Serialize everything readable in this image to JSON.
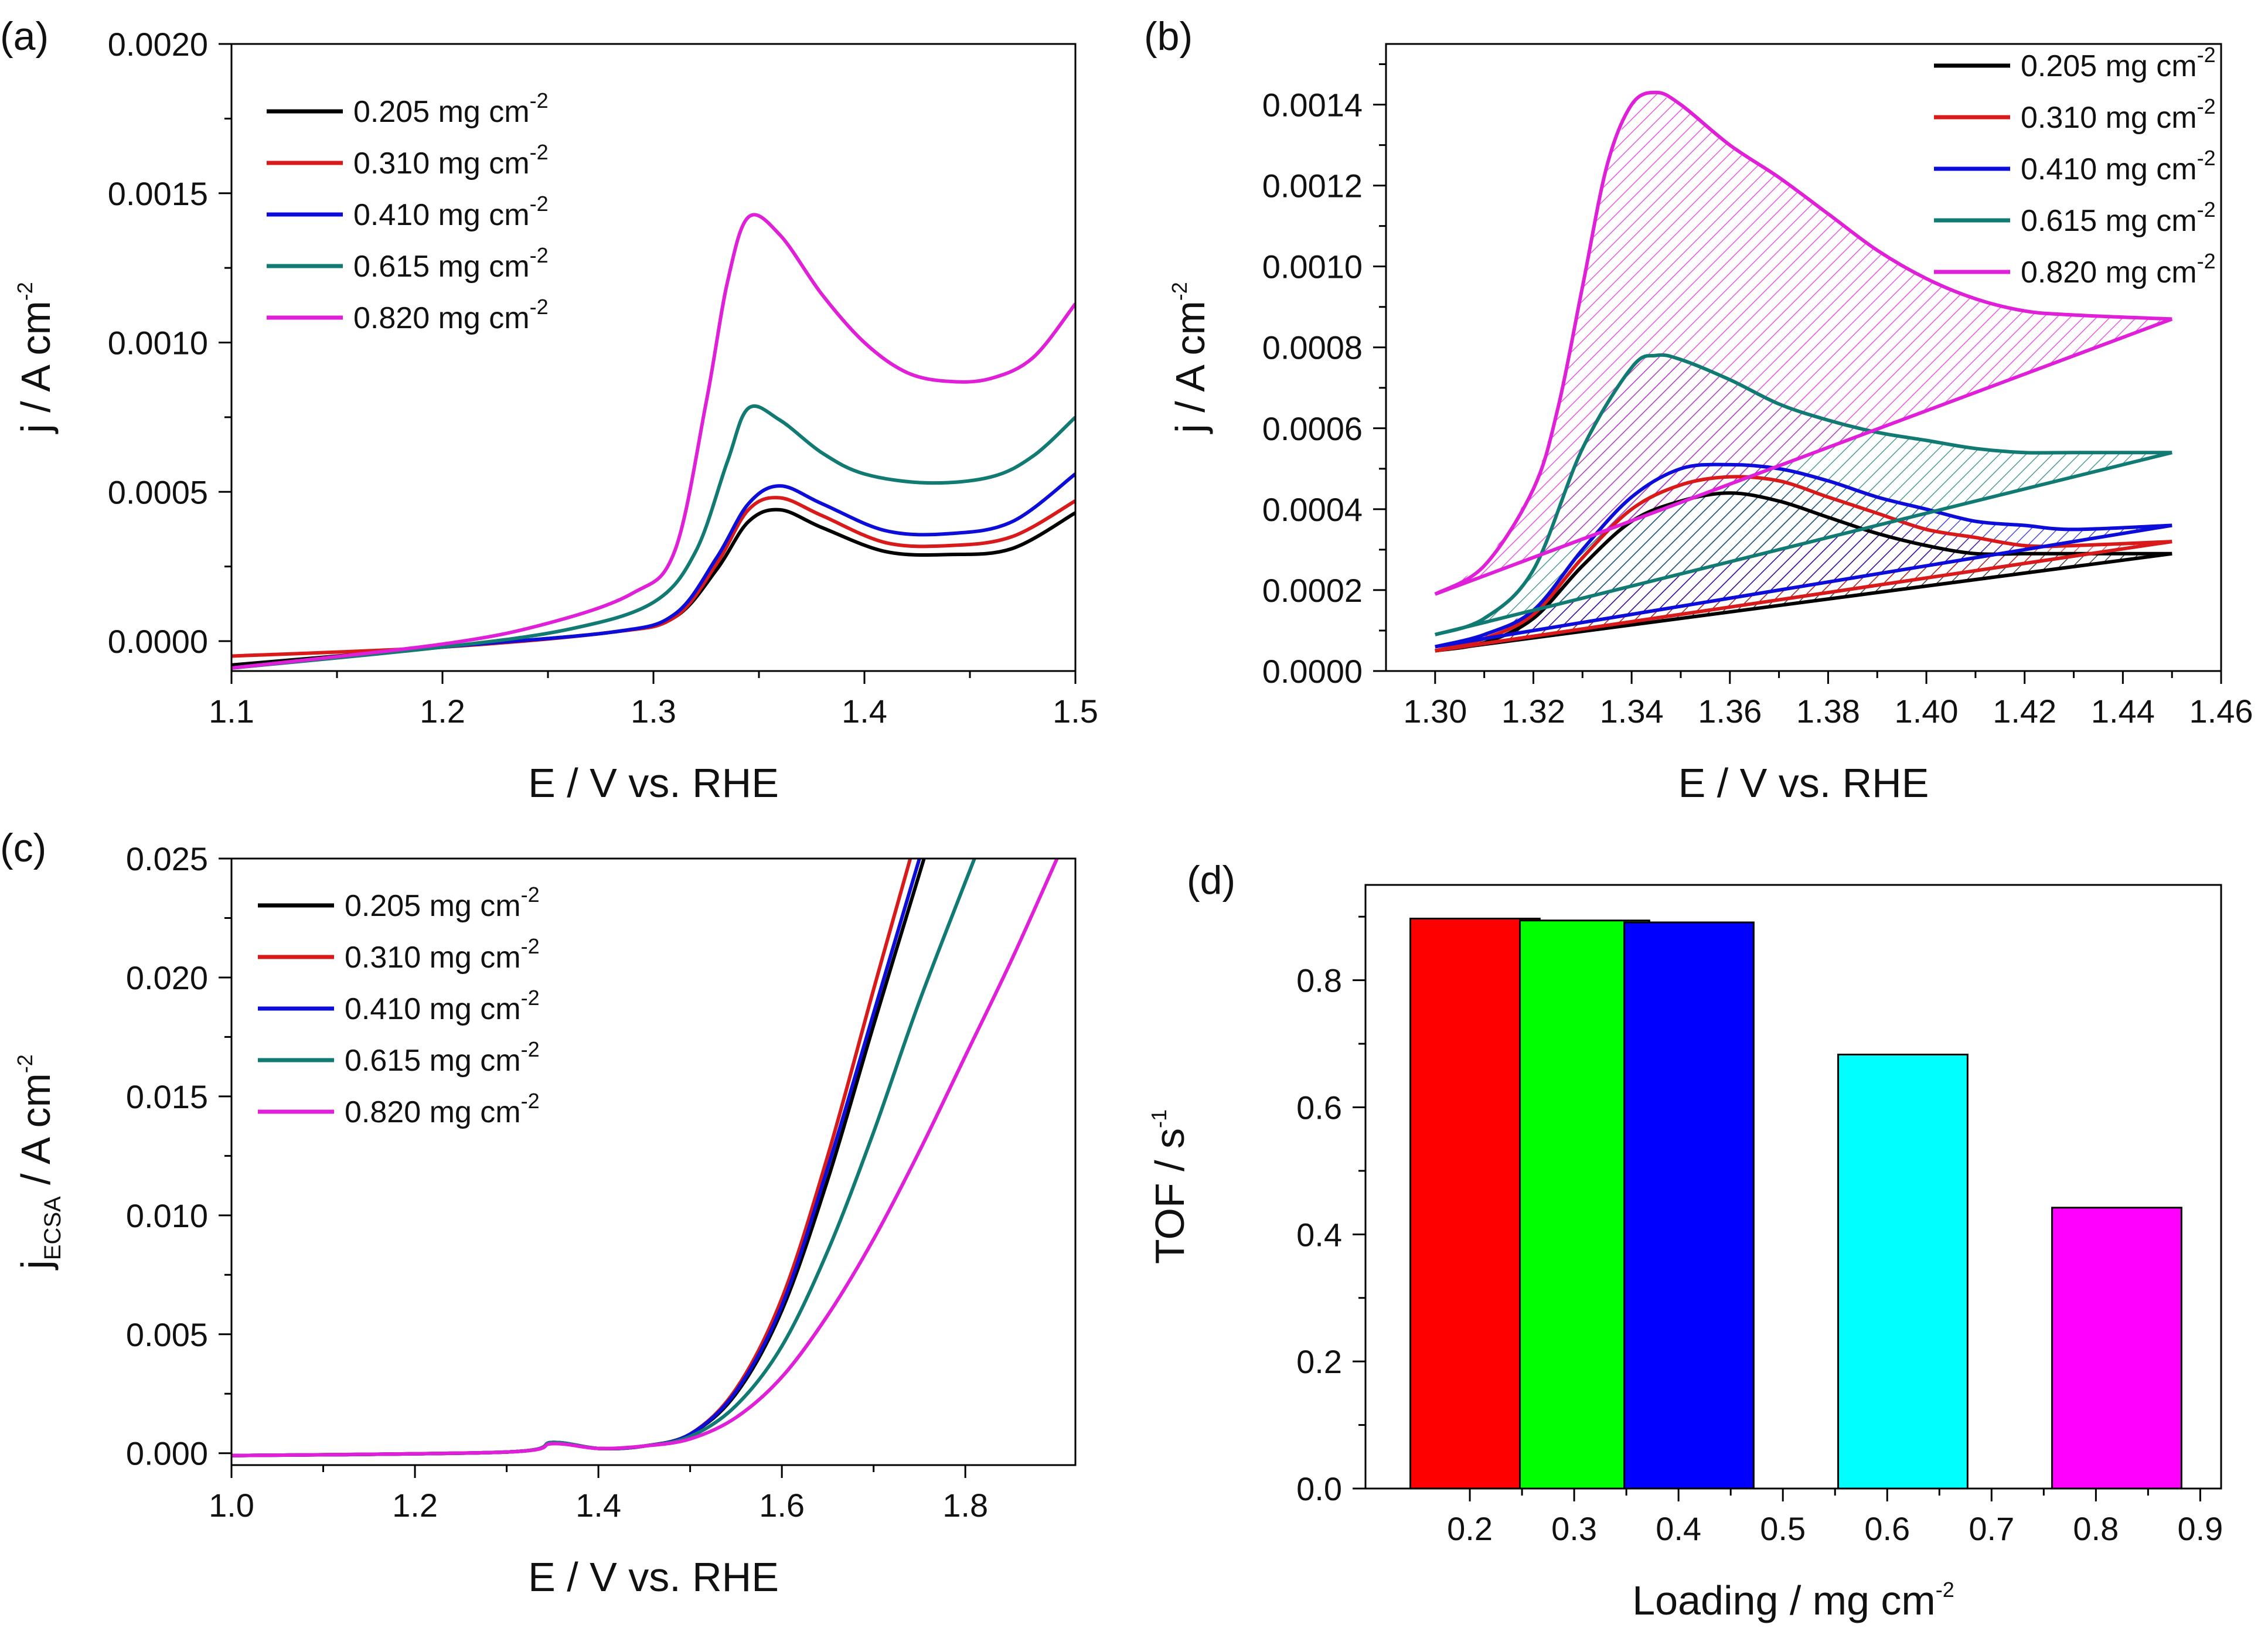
{
  "colors": {
    "black": "#000000",
    "red": "#d91a1a",
    "blue": "#0d0dd9",
    "teal": "#117a72",
    "magenta": "#e020d8",
    "bar_red": "#ff0000",
    "bar_green": "#00ff00",
    "bar_blue": "#0000ff",
    "bar_cyan": "#00ffff",
    "bar_magenta": "#ff00ff"
  },
  "legend": {
    "unit_text": "mg cm",
    "unit_exp": "-2",
    "entries": [
      {
        "value": "0.205",
        "color": "#000000"
      },
      {
        "value": "0.310",
        "color": "#d91a1a"
      },
      {
        "value": "0.410",
        "color": "#0d0dd9"
      },
      {
        "value": "0.615",
        "color": "#117a72"
      },
      {
        "value": "0.820",
        "color": "#e020d8"
      }
    ]
  },
  "chart_data": [
    {
      "panel": "(a)",
      "type": "line",
      "xlabel": "E / V vs. RHE",
      "ylabel": {
        "main": "j / A cm",
        "sup": "-2"
      },
      "xlim": [
        1.1,
        1.5
      ],
      "ylim": [
        -0.0001,
        0.002
      ],
      "xticks": [
        "1.1",
        "1.2",
        "1.3",
        "1.4",
        "1.5"
      ],
      "yticks": [
        "0.0000",
        "0.0005",
        "0.0010",
        "0.0015",
        "0.0020"
      ],
      "legend_position": "top-left",
      "series": [
        {
          "name": "0.205 mg cm-2",
          "color": "#000000",
          "x": [
            1.1,
            1.2,
            1.28,
            1.31,
            1.33,
            1.345,
            1.36,
            1.38,
            1.41,
            1.44,
            1.47,
            1.5
          ],
          "y": [
            -8e-05,
            -2e-05,
            3e-05,
            8e-05,
            0.00024,
            0.0004,
            0.00044,
            0.00038,
            0.0003,
            0.00029,
            0.00031,
            0.00043
          ]
        },
        {
          "name": "0.310 mg cm-2",
          "color": "#d91a1a",
          "x": [
            1.1,
            1.2,
            1.28,
            1.31,
            1.33,
            1.345,
            1.36,
            1.38,
            1.41,
            1.44,
            1.47,
            1.5
          ],
          "y": [
            -5e-05,
            -2e-05,
            3e-05,
            8e-05,
            0.00026,
            0.00044,
            0.00048,
            0.00042,
            0.00033,
            0.00032,
            0.00035,
            0.00047
          ]
        },
        {
          "name": "0.410 mg cm-2",
          "color": "#0d0dd9",
          "x": [
            1.1,
            1.2,
            1.28,
            1.31,
            1.33,
            1.345,
            1.36,
            1.38,
            1.41,
            1.44,
            1.47,
            1.5
          ],
          "y": [
            -9e-05,
            -2e-05,
            3e-05,
            9e-05,
            0.00028,
            0.00046,
            0.00052,
            0.00046,
            0.00037,
            0.00036,
            0.0004,
            0.00056
          ]
        },
        {
          "name": "0.615 mg cm-2",
          "color": "#117a72",
          "x": [
            1.1,
            1.2,
            1.26,
            1.3,
            1.32,
            1.335,
            1.345,
            1.36,
            1.38,
            1.4,
            1.43,
            1.46,
            1.48,
            1.5
          ],
          "y": [
            -9e-05,
            -2e-05,
            4e-05,
            0.00013,
            0.0003,
            0.0006,
            0.00078,
            0.00074,
            0.00063,
            0.00056,
            0.00053,
            0.00055,
            0.00062,
            0.00075
          ]
        },
        {
          "name": "0.820 mg cm-2",
          "color": "#e020d8",
          "x": [
            1.1,
            1.2,
            1.25,
            1.29,
            1.31,
            1.325,
            1.335,
            1.345,
            1.36,
            1.38,
            1.4,
            1.42,
            1.44,
            1.46,
            1.48,
            1.5
          ],
          "y": [
            -9e-05,
            -1e-05,
            6e-05,
            0.00016,
            0.0003,
            0.0008,
            0.0012,
            0.00142,
            0.00136,
            0.00116,
            0.001,
            0.0009,
            0.00087,
            0.00088,
            0.00095,
            0.00113
          ]
        }
      ]
    },
    {
      "panel": "(b)",
      "type": "line",
      "xlabel": "E / V vs. RHE",
      "ylabel": {
        "main": "j / A cm",
        "sup": "-2"
      },
      "xlim": [
        1.29,
        1.46
      ],
      "ylim": [
        0,
        0.00155
      ],
      "xticks": [
        "1.30",
        "1.32",
        "1.34",
        "1.36",
        "1.38",
        "1.40",
        "1.42",
        "1.44",
        "1.46"
      ],
      "yticks": [
        "0.0000",
        "0.0002",
        "0.0004",
        "0.0006",
        "0.0008",
        "0.0010",
        "0.0012",
        "0.0014"
      ],
      "legend_position": "top-right",
      "hatched_areas": true,
      "series": [
        {
          "name": "0.205 mg cm-2",
          "color": "#000000",
          "x": [
            1.3,
            1.31,
            1.32,
            1.33,
            1.34,
            1.35,
            1.36,
            1.37,
            1.38,
            1.39,
            1.4,
            1.41,
            1.42,
            1.43,
            1.45
          ],
          "y": [
            5e-05,
            7e-05,
            0.00013,
            0.00026,
            0.00037,
            0.00042,
            0.00044,
            0.00042,
            0.00038,
            0.00034,
            0.00031,
            0.00029,
            0.00029,
            0.00029,
            0.00029
          ],
          "baseline": [
            5e-05,
            0.00029
          ]
        },
        {
          "name": "0.310 mg cm-2",
          "color": "#d91a1a",
          "x": [
            1.3,
            1.31,
            1.32,
            1.33,
            1.34,
            1.35,
            1.36,
            1.37,
            1.38,
            1.39,
            1.4,
            1.41,
            1.42,
            1.43,
            1.45
          ],
          "y": [
            5e-05,
            8e-05,
            0.00014,
            0.00028,
            0.0004,
            0.00046,
            0.00048,
            0.00047,
            0.00043,
            0.00039,
            0.00035,
            0.00033,
            0.00031,
            0.00031,
            0.00032
          ],
          "baseline": [
            5e-05,
            0.00032
          ]
        },
        {
          "name": "0.410 mg cm-2",
          "color": "#0d0dd9",
          "x": [
            1.3,
            1.31,
            1.32,
            1.33,
            1.34,
            1.35,
            1.36,
            1.37,
            1.38,
            1.39,
            1.4,
            1.41,
            1.42,
            1.43,
            1.45
          ],
          "y": [
            6e-05,
            9e-05,
            0.00015,
            0.0003,
            0.00043,
            0.0005,
            0.00051,
            0.0005,
            0.00047,
            0.00043,
            0.0004,
            0.00037,
            0.00036,
            0.00035,
            0.00036
          ],
          "baseline": [
            6e-05,
            0.00036
          ]
        },
        {
          "name": "0.615 mg cm-2",
          "color": "#117a72",
          "x": [
            1.3,
            1.31,
            1.32,
            1.33,
            1.34,
            1.345,
            1.35,
            1.36,
            1.37,
            1.38,
            1.39,
            1.4,
            1.41,
            1.42,
            1.43,
            1.45
          ],
          "y": [
            9e-05,
            0.00013,
            0.00025,
            0.00055,
            0.00075,
            0.00078,
            0.00077,
            0.00072,
            0.00066,
            0.00062,
            0.00059,
            0.00057,
            0.00055,
            0.00054,
            0.00054,
            0.00054
          ],
          "baseline": [
            9e-05,
            0.00054
          ]
        },
        {
          "name": "0.820 mg cm-2",
          "color": "#e020d8",
          "x": [
            1.3,
            1.31,
            1.32,
            1.325,
            1.33,
            1.335,
            1.34,
            1.345,
            1.35,
            1.36,
            1.37,
            1.38,
            1.39,
            1.4,
            1.41,
            1.42,
            1.43,
            1.45
          ],
          "y": [
            0.00019,
            0.00026,
            0.00045,
            0.00065,
            0.00095,
            0.00125,
            0.0014,
            0.00143,
            0.0014,
            0.0013,
            0.00122,
            0.00113,
            0.00104,
            0.00097,
            0.00092,
            0.00089,
            0.00088,
            0.00087
          ],
          "baseline": [
            0.00019,
            0.00087
          ]
        }
      ]
    },
    {
      "panel": "(c)",
      "type": "line",
      "xlabel": "E / V vs. RHE",
      "ylabel": {
        "main": "j",
        "sub": "ECSA",
        "rest": " / A cm",
        "sup": "-2"
      },
      "xlim": [
        1.0,
        1.92
      ],
      "ylim": [
        -0.0005,
        0.025
      ],
      "xticks": [
        "1.0",
        "1.2",
        "1.4",
        "1.6",
        "1.8"
      ],
      "yticks": [
        "0.000",
        "0.005",
        "0.010",
        "0.015",
        "0.020",
        "0.025"
      ],
      "legend_position": "top-left",
      "series": [
        {
          "name": "0.205 mg cm-2",
          "color": "#000000",
          "x": [
            1.0,
            1.3,
            1.35,
            1.4,
            1.45,
            1.5,
            1.55,
            1.6,
            1.65,
            1.7,
            1.755
          ],
          "y": [
            -0.0001,
            5e-05,
            0.00045,
            0.0002,
            0.0003,
            0.0008,
            0.0025,
            0.006,
            0.0115,
            0.018,
            0.025
          ]
        },
        {
          "name": "0.310 mg cm-2",
          "color": "#d91a1a",
          "x": [
            1.0,
            1.3,
            1.35,
            1.4,
            1.45,
            1.5,
            1.55,
            1.6,
            1.65,
            1.7,
            1.74
          ],
          "y": [
            -0.0001,
            5e-05,
            0.00045,
            0.0002,
            0.0003,
            0.0008,
            0.0027,
            0.0065,
            0.0125,
            0.0195,
            0.025
          ]
        },
        {
          "name": "0.410 mg cm-2",
          "color": "#0d0dd9",
          "x": [
            1.0,
            1.3,
            1.35,
            1.4,
            1.45,
            1.5,
            1.55,
            1.6,
            1.65,
            1.7,
            1.75
          ],
          "y": [
            -0.0001,
            5e-05,
            0.00045,
            0.0002,
            0.0003,
            0.0008,
            0.0026,
            0.0062,
            0.012,
            0.0185,
            0.025
          ]
        },
        {
          "name": "0.615 mg cm-2",
          "color": "#117a72",
          "x": [
            1.0,
            1.3,
            1.35,
            1.4,
            1.45,
            1.5,
            1.55,
            1.6,
            1.65,
            1.7,
            1.75,
            1.81
          ],
          "y": [
            -0.0001,
            5e-05,
            0.00045,
            0.0002,
            0.0003,
            0.0007,
            0.002,
            0.0045,
            0.0085,
            0.0135,
            0.019,
            0.025
          ]
        },
        {
          "name": "0.820 mg cm-2",
          "color": "#e020d8",
          "x": [
            1.0,
            1.3,
            1.35,
            1.4,
            1.45,
            1.5,
            1.55,
            1.6,
            1.65,
            1.7,
            1.75,
            1.8,
            1.85,
            1.9
          ],
          "y": [
            -0.0001,
            5e-05,
            0.0004,
            0.0002,
            0.0003,
            0.0006,
            0.0015,
            0.0032,
            0.0058,
            0.009,
            0.0127,
            0.0167,
            0.0207,
            0.025
          ]
        }
      ]
    },
    {
      "panel": "(d)",
      "type": "bar",
      "xlabel": {
        "main": "Loading / mg cm",
        "sup": "-2"
      },
      "ylabel": {
        "main": "TOF / s",
        "sup": "-1"
      },
      "xlim": [
        0.1,
        0.92
      ],
      "ylim": [
        0,
        0.95
      ],
      "xticks": [
        "0.2",
        "0.3",
        "0.4",
        "0.5",
        "0.6",
        "0.7",
        "0.8",
        "0.9"
      ],
      "yticks": [
        "0.0",
        "0.2",
        "0.4",
        "0.6",
        "0.8"
      ],
      "bars": [
        {
          "x": 0.205,
          "value": 0.897,
          "color": "#ff0000"
        },
        {
          "x": 0.31,
          "value": 0.894,
          "color": "#00ff00"
        },
        {
          "x": 0.41,
          "value": 0.891,
          "color": "#0000ff"
        },
        {
          "x": 0.615,
          "value": 0.683,
          "color": "#00ffff"
        },
        {
          "x": 0.82,
          "value": 0.442,
          "color": "#ff00ff"
        }
      ],
      "bar_width": 0.124
    }
  ]
}
